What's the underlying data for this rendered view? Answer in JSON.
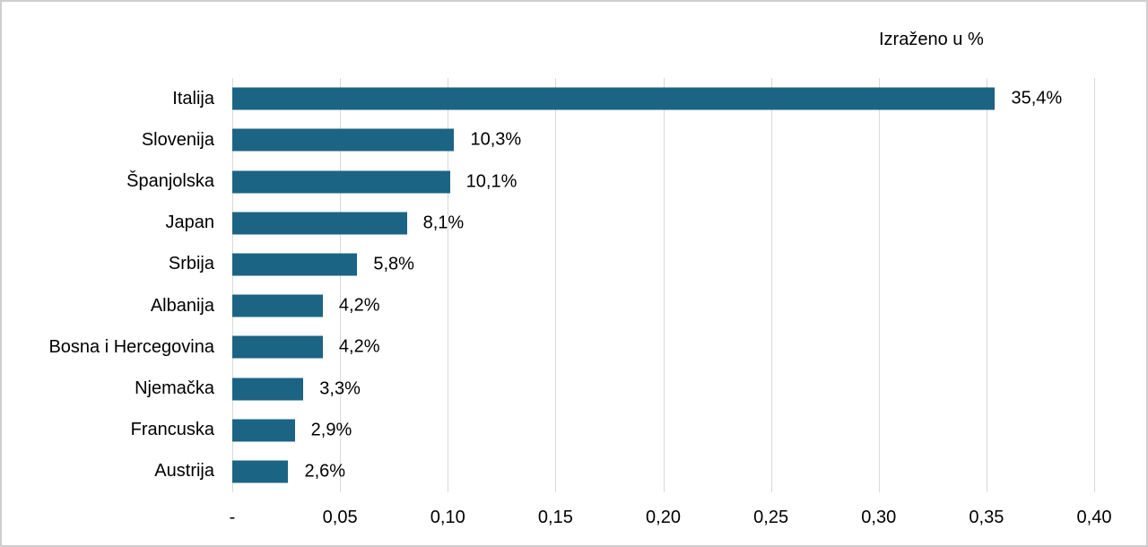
{
  "colors": {
    "bar": "#1C6484",
    "gridline": "#D9D9D9",
    "text": "#000000",
    "frame_border": "#D0CECE",
    "background": "#FFFFFF"
  },
  "chart_data": {
    "type": "bar",
    "orientation": "horizontal",
    "title": "Izraženo u %",
    "xlabel": "",
    "ylabel": "",
    "categories": [
      "Italija",
      "Slovenija",
      "Španjolska",
      "Japan",
      "Srbija",
      "Albanija",
      "Bosna i Hercegovina",
      "Njemačka",
      "Francuska",
      "Austrija"
    ],
    "values": [
      0.354,
      0.103,
      0.101,
      0.081,
      0.058,
      0.042,
      0.042,
      0.033,
      0.029,
      0.026
    ],
    "value_labels": [
      "35,4%",
      "10,3%",
      "10,1%",
      "8,1%",
      "5,8%",
      "4,2%",
      "4,2%",
      "3,3%",
      "2,9%",
      "2,6%"
    ],
    "xlim": [
      0,
      0.4
    ],
    "x_ticks": [
      {
        "value": 0.0,
        "label": "-"
      },
      {
        "value": 0.05,
        "label": "0,05"
      },
      {
        "value": 0.1,
        "label": "0,10"
      },
      {
        "value": 0.15,
        "label": "0,15"
      },
      {
        "value": 0.2,
        "label": "0,20"
      },
      {
        "value": 0.25,
        "label": "0,25"
      },
      {
        "value": 0.3,
        "label": "0,30"
      },
      {
        "value": 0.35,
        "label": "0,35"
      },
      {
        "value": 0.4,
        "label": "0,40"
      }
    ],
    "grid": "vertical",
    "legend": "none"
  }
}
